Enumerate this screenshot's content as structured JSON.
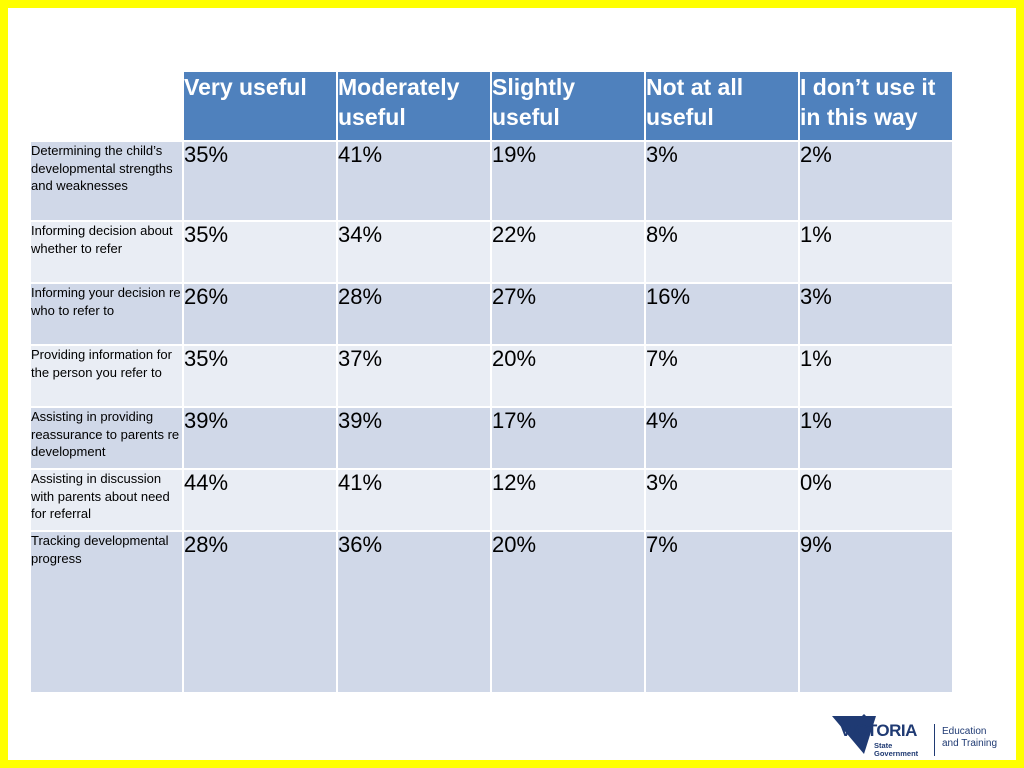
{
  "table": {
    "headers": [
      "Very useful",
      "Moderately useful",
      "Slightly useful",
      "Not at all useful",
      "I don’t use it in this way"
    ],
    "rows": [
      {
        "label": "Determining the child’s developmental strengths and weaknesses",
        "values": [
          "35%",
          "41%",
          "19%",
          "3%",
          "2%"
        ]
      },
      {
        "label": "Informing decision about whether to refer",
        "values": [
          "35%",
          "34%",
          "22%",
          "8%",
          "1%"
        ]
      },
      {
        "label": "Informing your decision re who to refer to",
        "values": [
          "26%",
          "28%",
          "27%",
          "16%",
          "3%"
        ]
      },
      {
        "label": "Providing information for the person you refer to",
        "values": [
          "35%",
          "37%",
          "20%",
          "7%",
          "1%"
        ]
      },
      {
        "label": "Assisting in providing reassurance to parents re development",
        "values": [
          "39%",
          "39%",
          "17%",
          "4%",
          "1%"
        ]
      },
      {
        "label": "Assisting in discussion with parents  about need for referral",
        "values": [
          "44%",
          "41%",
          "12%",
          "3%",
          "0%"
        ]
      },
      {
        "label": "Tracking developmental progress",
        "values": [
          "28%",
          "36%",
          "20%",
          "7%",
          "9%"
        ]
      }
    ]
  },
  "logo": {
    "name": "VICTORIA",
    "sub_line1": "State",
    "sub_line2": "Government",
    "dept_line1": "Education",
    "dept_line2": "and Training"
  },
  "colors": {
    "frame": "#ffff00",
    "header_bg": "#4f81bd",
    "row_dark": "#d0d8e8",
    "row_light": "#e9edf4",
    "logo_navy": "#1f3a73"
  }
}
